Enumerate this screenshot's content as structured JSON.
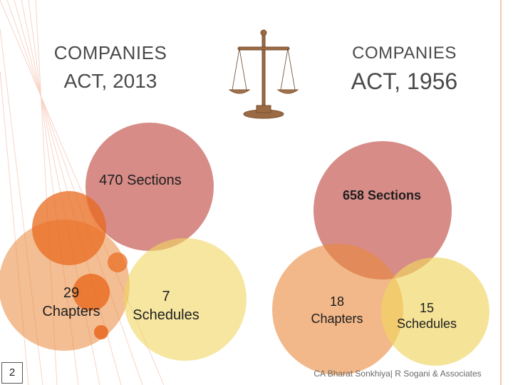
{
  "left": {
    "title_line1": "COMPANIES",
    "title_line2": "ACT, 2013",
    "sections": "470 Sections",
    "chapters_num": "29",
    "chapters_word": "Chapters",
    "schedules_num": "7",
    "schedules_word": "Schedules"
  },
  "right": {
    "title_line1": "COMPANIES",
    "title_line2": "ACT, 1956",
    "sections": "658 Sections",
    "chapters_num": "18",
    "chapters_word": "Chapters",
    "schedules_num": "15",
    "schedules_word": "Schedules"
  },
  "slide_number": "2",
  "footer": "CA Bharat Sonkhiya| R Sogani & Associates",
  "icons": [
    "scales-of-justice-icon"
  ],
  "colors": {
    "sections_circle": "#c9665f",
    "chapters_circle": "#e9883a",
    "schedules_circle": "#f0d560",
    "accent_orange": "#e8691e",
    "text_title": "#4a4a4a"
  }
}
